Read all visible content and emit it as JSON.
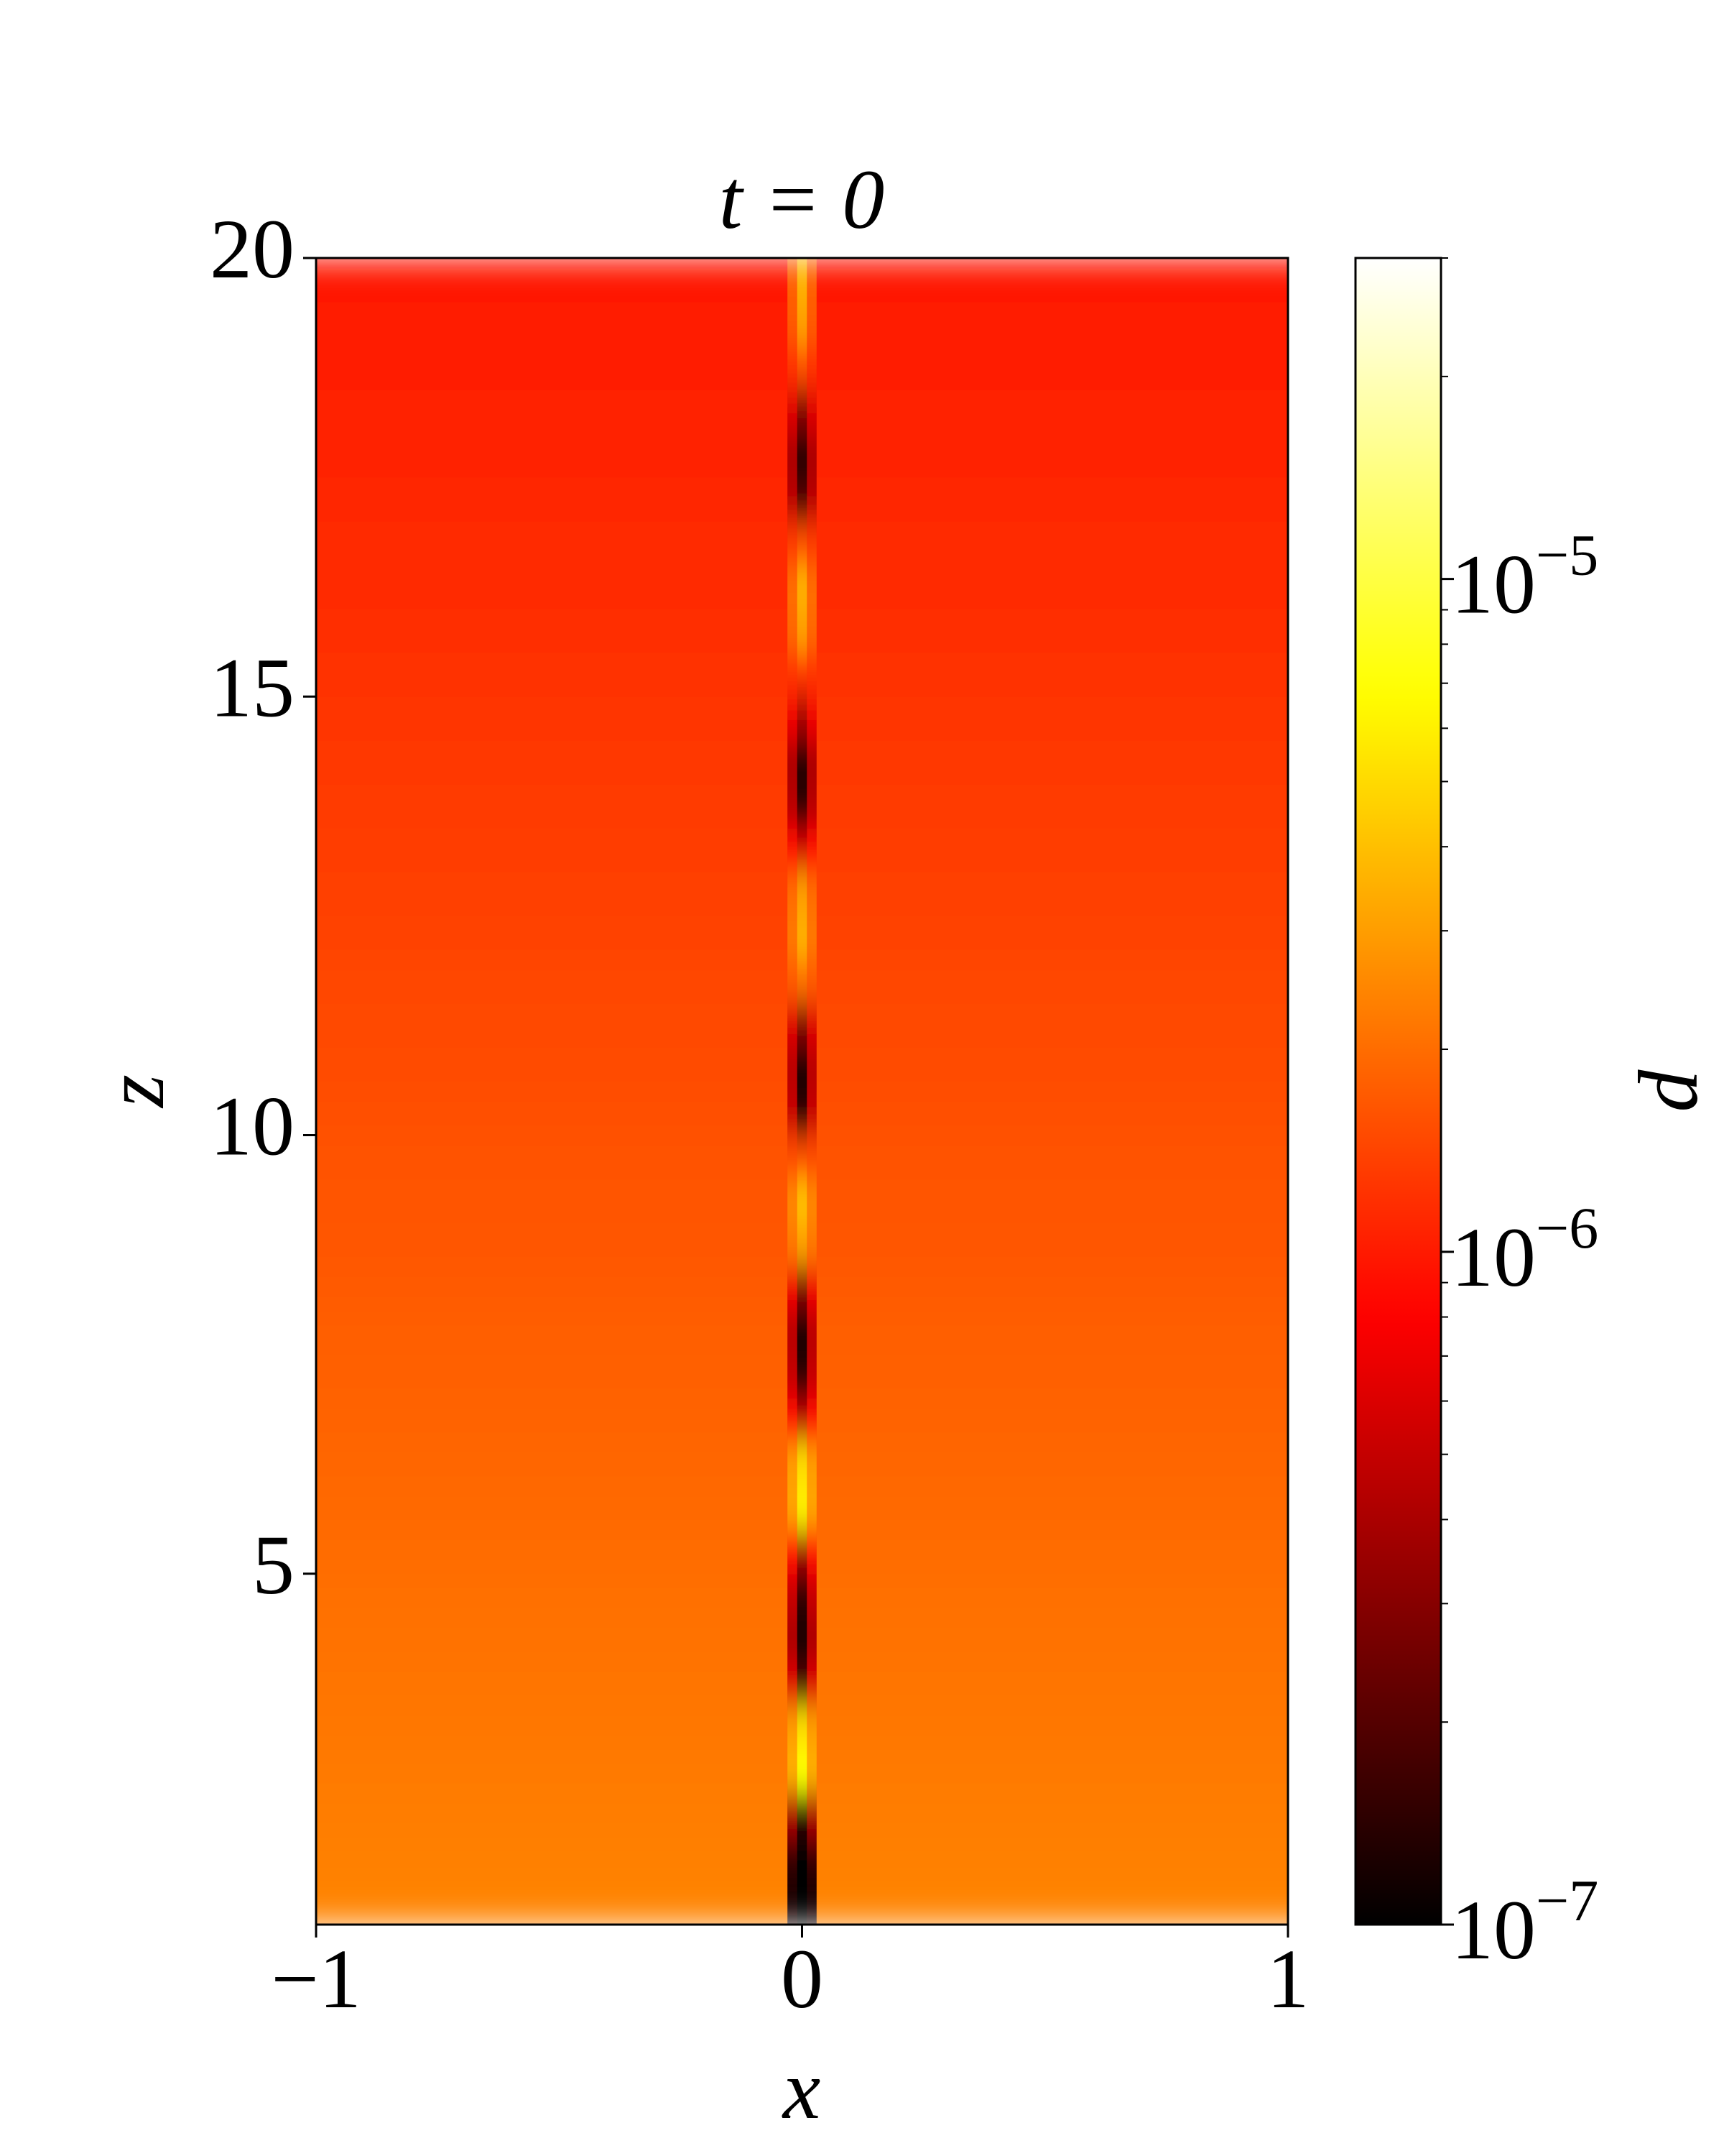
{
  "chart_data": {
    "type": "heatmap",
    "title": "t = 0",
    "xlabel": "x",
    "ylabel": "z",
    "colorbar_label": "d",
    "colormap": "hot",
    "clog": true,
    "clim": [
      1e-07,
      3e-05
    ],
    "xlim": [
      -1,
      1
    ],
    "ylim": [
      1,
      20
    ],
    "xticks": [
      {
        "value": -1,
        "label": "−1"
      },
      0,
      1
    ],
    "yticks": [
      5,
      10,
      15,
      20
    ],
    "cticks": [
      {
        "value": 1e-07,
        "label": "10−7"
      },
      {
        "value": 1e-06,
        "label": "10−6"
      },
      {
        "value": 1e-05,
        "label": "10−5"
      }
    ],
    "cminor": [
      2e-07,
      3e-07,
      4e-07,
      5e-07,
      6e-07,
      7e-07,
      8e-07,
      9e-07,
      2e-06,
      3e-06,
      4e-06,
      5e-06,
      6e-06,
      7e-06,
      8e-06,
      9e-06,
      2e-05,
      3e-05
    ],
    "x_edges": [
      -1,
      -0.03,
      -0.01,
      0.01,
      0.03,
      1
    ],
    "z_edges": [
      1,
      1.5,
      2,
      2.5,
      3,
      3.5,
      4,
      4.5,
      5,
      5.5,
      6,
      6.5,
      7,
      7.5,
      8,
      8.5,
      9,
      9.5,
      10,
      10.5,
      11,
      11.5,
      12,
      12.5,
      13,
      13.5,
      14,
      14.5,
      15,
      15.5,
      16,
      16.5,
      17,
      17.5,
      18,
      18.5,
      19,
      19.5,
      20
    ],
    "values": [
      [
        2.4e-06,
        1.2e-07,
        1e-07,
        1.2e-07,
        2.4e-06
      ],
      [
        2.34e-06,
        1.5e-07,
        1e-07,
        1.5e-07,
        2.34e-06
      ],
      [
        2.29e-06,
        4e-07,
        1.5e-07,
        4e-07,
        2.29e-06
      ],
      [
        2.23e-06,
        3.5e-06,
        7e-06,
        3.5e-06,
        2.23e-06
      ],
      [
        2.18e-06,
        3e-06,
        5e-06,
        3e-06,
        2.18e-06
      ],
      [
        2.13e-06,
        6e-07,
        2e-07,
        6e-07,
        2.13e-06
      ],
      [
        2.08e-06,
        4e-07,
        1.2e-07,
        4e-07,
        2.08e-06
      ],
      [
        2.03e-06,
        5e-07,
        1.5e-07,
        5e-07,
        2.03e-06
      ],
      [
        1.98e-06,
        9e-07,
        4e-07,
        9e-07,
        1.98e-06
      ],
      [
        1.93e-06,
        3.2e-06,
        6e-06,
        3.2e-06,
        1.93e-06
      ],
      [
        1.89e-06,
        3e-06,
        5e-06,
        3e-06,
        1.89e-06
      ],
      [
        1.84e-06,
        9e-07,
        5e-07,
        9e-07,
        1.84e-06
      ],
      [
        1.8e-06,
        5e-07,
        1.5e-07,
        5e-07,
        1.8e-06
      ],
      [
        1.76e-06,
        4.5e-07,
        1.2e-07,
        4.5e-07,
        1.76e-06
      ],
      [
        1.71e-06,
        7e-07,
        3e-07,
        7e-07,
        1.71e-06
      ],
      [
        1.67e-06,
        2.2e-06,
        3e-06,
        2.2e-06,
        1.67e-06
      ],
      [
        1.63e-06,
        2.5e-06,
        4e-06,
        2.5e-06,
        1.63e-06
      ],
      [
        1.59e-06,
        1.5e-06,
        1.5e-06,
        1.5e-06,
        1.59e-06
      ],
      [
        1.56e-06,
        5e-07,
        1.5e-07,
        5e-07,
        1.56e-06
      ],
      [
        1.52e-06,
        4.5e-07,
        1.2e-07,
        4.5e-07,
        1.52e-06
      ],
      [
        1.48e-06,
        6e-07,
        3e-07,
        6e-07,
        1.48e-06
      ],
      [
        1.45e-06,
        1.7e-06,
        2e-06,
        1.7e-06,
        1.45e-06
      ],
      [
        1.41e-06,
        2.2e-06,
        3.5e-06,
        2.2e-06,
        1.41e-06
      ],
      [
        1.38e-06,
        2e-06,
        3e-06,
        2e-06,
        1.38e-06
      ],
      [
        1.35e-06,
        9e-07,
        6e-07,
        9e-07,
        1.35e-06
      ],
      [
        1.31e-06,
        4.5e-07,
        1.5e-07,
        4.5e-07,
        1.31e-06
      ],
      [
        1.28e-06,
        4e-07,
        1.3e-07,
        4e-07,
        1.28e-06
      ],
      [
        1.25e-06,
        7e-07,
        4e-07,
        7e-07,
        1.25e-06
      ],
      [
        1.22e-06,
        1.2e-06,
        1.2e-06,
        1.2e-06,
        1.22e-06
      ],
      [
        1.19e-06,
        1.9e-06,
        3e-06,
        1.9e-06,
        1.19e-06
      ],
      [
        1.16e-06,
        2e-06,
        3.5e-06,
        2e-06,
        1.16e-06
      ],
      [
        1.14e-06,
        1.3e-06,
        1.5e-06,
        1.3e-06,
        1.14e-06
      ],
      [
        1.11e-06,
        4.5e-07,
        2e-07,
        4.5e-07,
        1.11e-06
      ],
      [
        1.08e-06,
        4e-07,
        1.3e-07,
        4e-07,
        1.08e-06
      ],
      [
        1.06e-06,
        6e-07,
        3e-07,
        6e-07,
        1.06e-06
      ],
      [
        1.03e-06,
        1.2e-06,
        1.5e-06,
        1.2e-06,
        1.03e-06
      ],
      [
        1.01e-06,
        1.7e-06,
        3e-06,
        1.7e-06,
        1.01e-06
      ],
      [
        9.8e-07,
        1.8e-06,
        3.5e-06,
        1.8e-06,
        9.8e-07
      ]
    ]
  }
}
